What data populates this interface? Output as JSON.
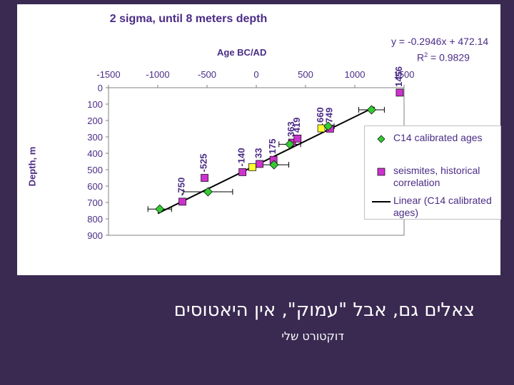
{
  "chart_data": {
    "type": "scatter",
    "title": "2 sigma, until 8 meters depth",
    "xlabel": "Age  BC/AD",
    "ylabel": "Depth, m",
    "xlim": [
      -1500,
      1500
    ],
    "ylim": [
      0,
      900
    ],
    "y_inverted": true,
    "x_axis_position": "top",
    "xticks": [
      -1500,
      -1000,
      -500,
      0,
      500,
      1000,
      1500
    ],
    "yticks": [
      0,
      100,
      200,
      300,
      400,
      500,
      600,
      700,
      800,
      900
    ],
    "grid": false,
    "legend": "right",
    "series": [
      {
        "name": "C14 calibrated ages",
        "marker": "diamond",
        "color": "#33cc33",
        "points": [
          {
            "x": -980,
            "y": 740,
            "xerr": 120
          },
          {
            "x": -490,
            "y": 635,
            "xerr": 250
          },
          {
            "x": 180,
            "y": 470,
            "xerr": 150
          },
          {
            "x": 340,
            "y": 345,
            "xerr": 110
          },
          {
            "x": 730,
            "y": 235,
            "xerr": 60
          },
          {
            "x": 1170,
            "y": 135,
            "xerr": 130
          }
        ]
      },
      {
        "name": "seismites, historical correlation",
        "marker": "square",
        "colors": [
          "#cc33cc",
          "#ffff33"
        ],
        "points": [
          {
            "x": -750,
            "y": 695,
            "label": "-750",
            "color": "#cc33cc"
          },
          {
            "x": -525,
            "y": 550,
            "label": "-525",
            "color": "#cc33cc"
          },
          {
            "x": -140,
            "y": 515,
            "label": "-140",
            "color": "#cc33cc"
          },
          {
            "x": -40,
            "y": 485,
            "label": "",
            "color": "#ffff33"
          },
          {
            "x": 33,
            "y": 465,
            "label": "33",
            "color": "#cc33cc"
          },
          {
            "x": 175,
            "y": 440,
            "label": "175",
            "color": "#cc33cc"
          },
          {
            "x": 363,
            "y": 335,
            "label": "363",
            "color": "#cc33cc"
          },
          {
            "x": 419,
            "y": 310,
            "label": "419",
            "color": "#cc33cc"
          },
          {
            "x": 660,
            "y": 248,
            "label": "660",
            "color": "#ffff33"
          },
          {
            "x": 749,
            "y": 250,
            "label": "749",
            "color": "#cc33cc"
          },
          {
            "x": 1456,
            "y": 30,
            "label": "1456",
            "color": "#cc33cc"
          }
        ]
      },
      {
        "name": "Linear (C14 calibrated ages)",
        "type": "line",
        "color": "#000000",
        "slope": -0.2946,
        "intercept": 472.14,
        "x_range": [
          -1000,
          1200
        ]
      }
    ],
    "annotations": [
      "y = -0.2946x + 472.14",
      "R",
      "2",
      " = 0.9829"
    ]
  },
  "slide": {
    "subtitle": "צאלים גם, אבל \"עמוק\", אין היאטוסים",
    "footer": "דוקטורט שלי"
  }
}
